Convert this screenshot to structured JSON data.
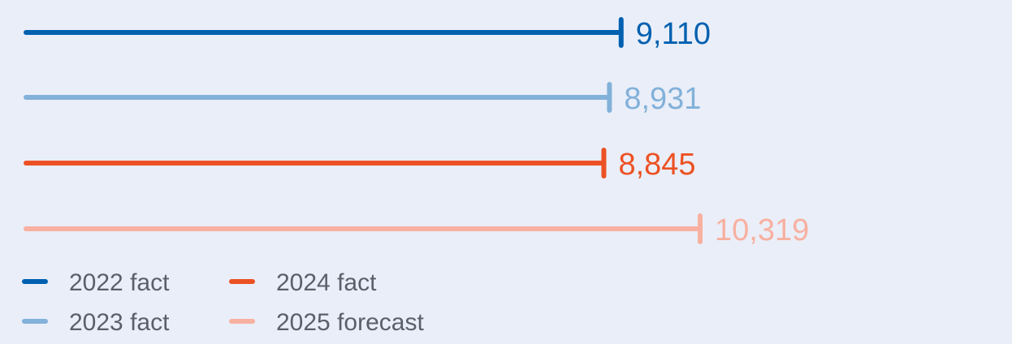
{
  "chart_data": {
    "type": "bar",
    "orientation": "horizontal",
    "categories": [
      "2022 fact",
      "2023 fact",
      "2024 fact",
      "2025 forecast"
    ],
    "values": [
      9110,
      8931,
      8845,
      10319
    ],
    "value_labels": [
      "9,110",
      "8,931",
      "8,845",
      "10,319"
    ],
    "colors": [
      "#0060b0",
      "#82b1d9",
      "#ec5124",
      "#f8b0a0"
    ],
    "title": "",
    "xlabel": "",
    "ylabel": "",
    "xlim": [
      0,
      10319
    ],
    "grid": false,
    "legend": {
      "placement": "bottom-left",
      "entries": [
        "2022 fact",
        "2024 fact",
        "2023 fact",
        "2025 forecast"
      ]
    }
  }
}
